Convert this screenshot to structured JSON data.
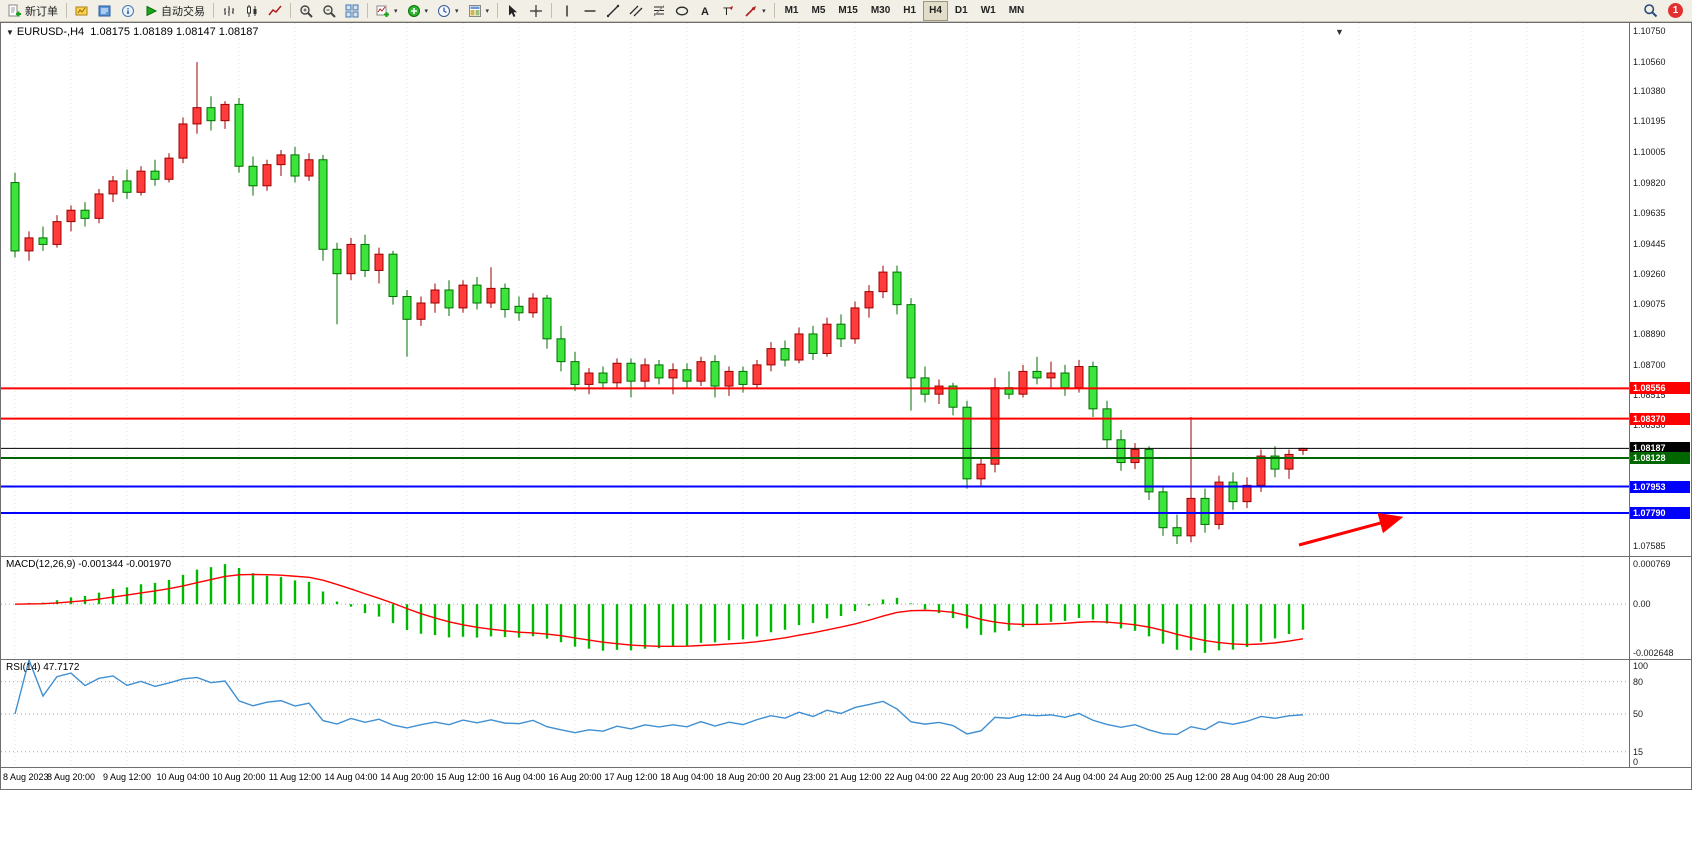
{
  "colors": {
    "bull": "#ff3b3b",
    "bull_border": "#9e0000",
    "bear": "#3ce43c",
    "bear_border": "#007000",
    "macd_hist": "#00b800",
    "macd_signal": "#ff0000",
    "rsi_line": "#3f8fd2",
    "grid": "#e3e3e3",
    "level": "#a6a6a6",
    "badge_bg": "#e23030"
  },
  "toolbar": {
    "caret_glyph": "▾",
    "new_order_label": "新订单",
    "autotrading_label": "自动交易",
    "buttons": [
      {
        "t": "btn",
        "name": "new-order-button",
        "icon": "neworder",
        "label": "新订单"
      },
      {
        "t": "sep"
      },
      {
        "t": "btn",
        "name": "charts-button",
        "icon": "charts"
      },
      {
        "t": "btn",
        "name": "market-watch-button",
        "icon": "marketwatch"
      },
      {
        "t": "btn",
        "name": "data-window-button",
        "icon": "datawindow"
      },
      {
        "t": "btn",
        "name": "autotrading-button",
        "icon": "autotrading",
        "label": "自动交易"
      },
      {
        "t": "sep"
      },
      {
        "t": "btn",
        "name": "bar-chart-button",
        "icon": "barchart"
      },
      {
        "t": "btn",
        "name": "candlestick-chart-button",
        "icon": "candles"
      },
      {
        "t": "btn",
        "name": "line-chart-button",
        "icon": "linechart"
      },
      {
        "t": "sep"
      },
      {
        "t": "btn",
        "name": "zoom-in-button",
        "icon": "zoomin"
      },
      {
        "t": "btn",
        "name": "zoom-out-button",
        "icon": "zoomout"
      },
      {
        "t": "btn",
        "name": "tile-windows-button",
        "icon": "tile"
      },
      {
        "t": "sep"
      },
      {
        "t": "btn",
        "name": "new-chart-button",
        "icon": "newchart",
        "caret": true
      },
      {
        "t": "btn",
        "name": "indicators-button",
        "icon": "indicators",
        "caret": true
      },
      {
        "t": "btn",
        "name": "periods-button",
        "icon": "clock",
        "caret": true
      },
      {
        "t": "btn",
        "name": "templates-button",
        "icon": "template",
        "caret": true
      },
      {
        "t": "sep"
      },
      {
        "t": "btn",
        "name": "cursor-button",
        "icon": "cursor"
      },
      {
        "t": "btn",
        "name": "crosshair-button",
        "icon": "crosshair"
      },
      {
        "t": "sep"
      },
      {
        "t": "btn",
        "name": "vertical-line-button",
        "icon": "vline"
      },
      {
        "t": "btn",
        "name": "horizontal-line-button",
        "icon": "hline"
      },
      {
        "t": "btn",
        "name": "trendline-button",
        "icon": "tline"
      },
      {
        "t": "btn",
        "name": "equidistant-channel-button",
        "icon": "channel"
      },
      {
        "t": "btn",
        "name": "fibonacci-button",
        "icon": "fibo"
      },
      {
        "t": "btn",
        "name": "shapes-button",
        "icon": "shapes"
      },
      {
        "t": "btn",
        "name": "text-button",
        "icon": "textA"
      },
      {
        "t": "btn",
        "name": "text-label-button",
        "icon": "labelT"
      },
      {
        "t": "btn",
        "name": "arrows-button",
        "icon": "arrowtool",
        "caret": true
      },
      {
        "t": "sep"
      }
    ],
    "timeframes": [
      "M1",
      "M5",
      "M15",
      "M30",
      "H1",
      "H4",
      "D1",
      "W1",
      "MN"
    ],
    "active_timeframe": "H4",
    "notification_count": "1"
  },
  "chart": {
    "marker_glyph": "▼",
    "title": "EURUSD-,H4",
    "ohlc_text": "1.08175 1.08189 1.08147 1.08187",
    "y_range": [
      1.0752,
      1.108
    ],
    "price_labels": [
      "1.10750",
      "1.10560",
      "1.10380",
      "1.10195",
      "1.10005",
      "1.09820",
      "1.09635",
      "1.09445",
      "1.09260",
      "1.09075",
      "1.08890",
      "1.08700",
      "1.08515",
      "1.08330",
      "1.07585"
    ],
    "hlines": [
      {
        "value": 1.08556,
        "label": "1.08556",
        "color": "#ff0000",
        "width": 2
      },
      {
        "value": 1.0837,
        "label": "1.08370",
        "color": "#ff0000",
        "width": 2
      },
      {
        "value": 1.08187,
        "label": "1.08187",
        "color": "#000000",
        "width": 1
      },
      {
        "value": 1.08128,
        "label": "1.08128",
        "color": "#006600",
        "width": 2
      },
      {
        "value": 1.07953,
        "label": "1.07953",
        "color": "#0000ff",
        "width": 2
      },
      {
        "value": 1.0779,
        "label": "1.07790",
        "color": "#0000ff",
        "width": 2
      }
    ]
  },
  "chart_data": {
    "type": "candlestick",
    "symbol": "EURUSD-",
    "timeframe": "H4",
    "x_label_step": 4,
    "x_labels": [
      "8 Aug 2023",
      "8 Aug 20:00",
      "9 Aug 12:00",
      "10 Aug 04:00",
      "10 Aug 20:00",
      "11 Aug 12:00",
      "14 Aug 04:00",
      "14 Aug 20:00",
      "15 Aug 12:00",
      "16 Aug 04:00",
      "16 Aug 20:00",
      "17 Aug 12:00",
      "18 Aug 04:00",
      "18 Aug 20:00",
      "20 Aug 23:00",
      "21 Aug 12:00",
      "22 Aug 04:00",
      "22 Aug 20:00",
      "23 Aug 12:00",
      "24 Aug 04:00",
      "24 Aug 20:00",
      "25 Aug 12:00",
      "28 Aug 04:00",
      "28 Aug 20:00"
    ],
    "candles": [
      [
        1.0982,
        1.0988,
        1.0936,
        1.094
      ],
      [
        1.094,
        1.0952,
        1.0934,
        1.0948
      ],
      [
        1.0948,
        1.0955,
        1.094,
        1.0944
      ],
      [
        1.0944,
        1.0962,
        1.0942,
        1.0958
      ],
      [
        1.0958,
        1.0968,
        1.0952,
        1.0965
      ],
      [
        1.0965,
        1.097,
        1.0955,
        1.096
      ],
      [
        1.096,
        1.0978,
        1.0957,
        1.0975
      ],
      [
        1.0975,
        1.0986,
        1.097,
        1.0983
      ],
      [
        1.0983,
        1.099,
        1.0972,
        1.0976
      ],
      [
        1.0976,
        1.0992,
        1.0974,
        1.0989
      ],
      [
        1.0989,
        1.0996,
        1.098,
        1.0984
      ],
      [
        1.0984,
        1.1,
        1.0982,
        1.0997
      ],
      [
        1.0997,
        1.1022,
        1.0994,
        1.1018
      ],
      [
        1.1018,
        1.1056,
        1.1012,
        1.1028
      ],
      [
        1.1028,
        1.1035,
        1.1014,
        1.102
      ],
      [
        1.102,
        1.1032,
        1.1015,
        1.103
      ],
      [
        1.103,
        1.1034,
        1.0988,
        1.0992
      ],
      [
        1.0992,
        1.0998,
        1.0974,
        1.098
      ],
      [
        1.098,
        1.0996,
        1.0977,
        1.0993
      ],
      [
        1.0993,
        1.1002,
        1.0986,
        1.0999
      ],
      [
        1.0999,
        1.1004,
        1.0982,
        1.0986
      ],
      [
        1.0986,
        1.1,
        1.0983,
        1.0996
      ],
      [
        1.0996,
        1.0999,
        1.0934,
        1.0941
      ],
      [
        1.0941,
        1.0945,
        1.0895,
        1.0926
      ],
      [
        1.0926,
        1.0948,
        1.0922,
        1.0944
      ],
      [
        1.0944,
        1.095,
        1.0924,
        1.0928
      ],
      [
        1.0928,
        1.0942,
        1.092,
        1.0938
      ],
      [
        1.0938,
        1.094,
        1.0907,
        1.0912
      ],
      [
        1.0912,
        1.0916,
        1.0875,
        1.0898
      ],
      [
        1.0898,
        1.0912,
        1.0894,
        1.0908
      ],
      [
        1.0908,
        1.092,
        1.0902,
        1.0916
      ],
      [
        1.0916,
        1.0922,
        1.09,
        1.0905
      ],
      [
        1.0905,
        1.0922,
        1.0902,
        1.0919
      ],
      [
        1.0919,
        1.0924,
        1.0904,
        1.0908
      ],
      [
        1.0908,
        1.093,
        1.0905,
        1.0917
      ],
      [
        1.0917,
        1.092,
        1.0899,
        1.0904
      ],
      [
        1.0906,
        1.0912,
        1.0897,
        1.0902
      ],
      [
        1.0902,
        1.0914,
        1.0899,
        1.0911
      ],
      [
        1.0911,
        1.0913,
        1.088,
        1.0886
      ],
      [
        1.0886,
        1.0894,
        1.0866,
        1.0872
      ],
      [
        1.0872,
        1.0878,
        1.0854,
        1.0858
      ],
      [
        1.0858,
        1.0868,
        1.0852,
        1.0865
      ],
      [
        1.0865,
        1.0869,
        1.0855,
        1.0859
      ],
      [
        1.0859,
        1.0874,
        1.0856,
        1.0871
      ],
      [
        1.0871,
        1.0874,
        1.085,
        1.086
      ],
      [
        1.086,
        1.0874,
        1.0856,
        1.087
      ],
      [
        1.087,
        1.0873,
        1.0858,
        1.0862
      ],
      [
        1.0862,
        1.0871,
        1.0852,
        1.0867
      ],
      [
        1.0867,
        1.0871,
        1.0856,
        1.086
      ],
      [
        1.086,
        1.0875,
        1.0857,
        1.0872
      ],
      [
        1.0872,
        1.0876,
        1.085,
        1.0857
      ],
      [
        1.0857,
        1.0869,
        1.0851,
        1.0866
      ],
      [
        1.0866,
        1.0869,
        1.0853,
        1.0858
      ],
      [
        1.0858,
        1.0873,
        1.0855,
        1.087
      ],
      [
        1.087,
        1.0884,
        1.0866,
        1.088
      ],
      [
        1.088,
        1.0885,
        1.0869,
        1.0873
      ],
      [
        1.0873,
        1.0893,
        1.0871,
        1.0889
      ],
      [
        1.0889,
        1.0894,
        1.0873,
        1.0877
      ],
      [
        1.0877,
        1.0899,
        1.0875,
        1.0895
      ],
      [
        1.0895,
        1.0901,
        1.0881,
        1.0886
      ],
      [
        1.0886,
        1.0909,
        1.0883,
        1.0905
      ],
      [
        1.0905,
        1.0919,
        1.0899,
        1.0915
      ],
      [
        1.0915,
        1.0931,
        1.0911,
        1.0927
      ],
      [
        1.0927,
        1.0931,
        1.0901,
        1.0907
      ],
      [
        1.0907,
        1.0911,
        1.0842,
        1.0862
      ],
      [
        1.0862,
        1.0869,
        1.0847,
        1.0852
      ],
      [
        1.0852,
        1.0861,
        1.0846,
        1.0857
      ],
      [
        1.0857,
        1.0859,
        1.0839,
        1.0844
      ],
      [
        1.0844,
        1.0848,
        1.0794,
        1.08
      ],
      [
        1.08,
        1.0813,
        1.0795,
        1.0809
      ],
      [
        1.0809,
        1.0862,
        1.0804,
        1.0856
      ],
      [
        1.0856,
        1.0866,
        1.0849,
        1.0852
      ],
      [
        1.0852,
        1.087,
        1.085,
        1.0866
      ],
      [
        1.0866,
        1.0875,
        1.0858,
        1.0862
      ],
      [
        1.0862,
        1.0872,
        1.0856,
        1.0865
      ],
      [
        1.0865,
        1.087,
        1.0851,
        1.0856
      ],
      [
        1.0856,
        1.0873,
        1.0853,
        1.0869
      ],
      [
        1.0869,
        1.0872,
        1.0838,
        1.0843
      ],
      [
        1.0843,
        1.0848,
        1.0819,
        1.0824
      ],
      [
        1.0824,
        1.083,
        1.0805,
        1.081
      ],
      [
        1.081,
        1.0822,
        1.0806,
        1.0818
      ],
      [
        1.0818,
        1.082,
        1.0787,
        1.0792
      ],
      [
        1.0792,
        1.0796,
        1.0765,
        1.077
      ],
      [
        1.077,
        1.0778,
        1.076,
        1.0765
      ],
      [
        1.0765,
        1.0838,
        1.0761,
        1.0788
      ],
      [
        1.0788,
        1.0794,
        1.0767,
        1.0772
      ],
      [
        1.0772,
        1.0802,
        1.0769,
        1.0798
      ],
      [
        1.0798,
        1.0804,
        1.0781,
        1.0786
      ],
      [
        1.0786,
        1.0801,
        1.0782,
        1.0796
      ],
      [
        1.0796,
        1.0818,
        1.0792,
        1.0814
      ],
      [
        1.0814,
        1.082,
        1.0801,
        1.0806
      ],
      [
        1.0806,
        1.0818,
        1.08,
        1.0815
      ],
      [
        1.08175,
        1.08189,
        1.08147,
        1.08187
      ]
    ],
    "indicators": [
      {
        "type": "macd",
        "label": "MACD(12,26,9) -0.001344 -0.001970",
        "fast": 12,
        "slow": 26,
        "signal": 9,
        "values_text": [
          "-0.001344",
          "-0.001970"
        ],
        "scale_labels": {
          "top": "0.000769",
          "zero": "0.00",
          "bottom": "-0.002648"
        }
      },
      {
        "type": "rsi",
        "label": "RSI(14) 47.7172",
        "period": 14,
        "value_text": "47.7172",
        "levels": [
          80,
          50,
          15
        ],
        "range": [
          0,
          100
        ],
        "scale_labels": [
          "100",
          "80",
          "50",
          "15",
          "0"
        ]
      }
    ],
    "annotation": {
      "type": "arrow",
      "color": "#ff0000",
      "from_xy": [
        1298,
        522
      ],
      "to_xy": [
        1398,
        495
      ]
    }
  }
}
